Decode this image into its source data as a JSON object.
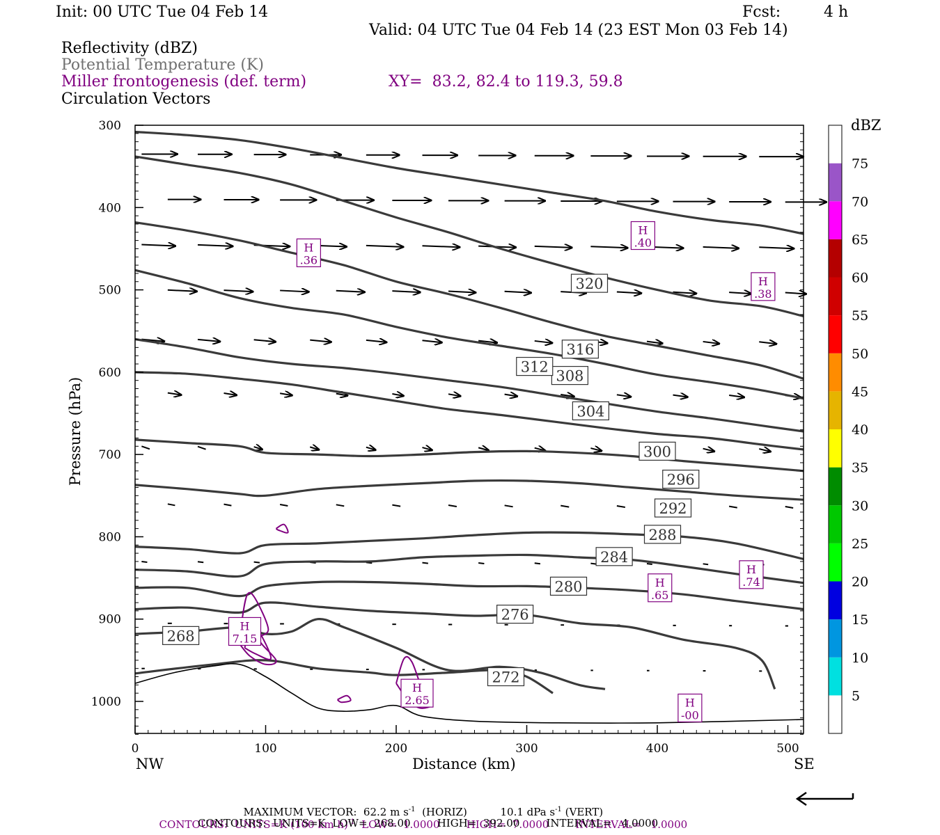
{
  "header": {
    "init": "Init: 00 UTC Tue 04 Feb 14",
    "fcst_label": "Fcst:",
    "fcst_value": "4 h",
    "valid": "Valid: 04 UTC Tue 04 Feb 14 (23 EST Mon 03 Feb 14)"
  },
  "legend_lines": {
    "reflectivity": "Reflectivity (dBZ)",
    "theta": "Potential Temperature (K)",
    "frontogenesis": "Miller frontogenesis (def. term)",
    "xy": "XY=  83.2, 82.4 to 119.3, 59.8",
    "vectors": "Circulation Vectors"
  },
  "colors": {
    "theta_contour": "#3a3a3a",
    "frontogenesis": "#800080",
    "vector": "#000000",
    "terrain": "#000000"
  },
  "chart_data": {
    "type": "cross-section",
    "xlabel": "Distance (km)",
    "ylabel": "Pressure (hPa)",
    "x_range": [
      0,
      512
    ],
    "y_range": [
      300,
      1040
    ],
    "x_ticks": [
      0,
      100,
      200,
      300,
      400,
      500
    ],
    "y_ticks": [
      300,
      400,
      500,
      600,
      700,
      800,
      900,
      1000
    ],
    "x_end_labels": {
      "left": "NW",
      "right": "SE"
    },
    "theta_contours": [
      {
        "label": "268",
        "label_at": [
          35,
          920
        ],
        "points": [
          [
            0,
            918
          ],
          [
            40,
            915
          ],
          [
            80,
            910
          ],
          [
            100,
            918
          ],
          [
            120,
            915
          ],
          [
            140,
            900
          ],
          [
            160,
            910
          ],
          [
            200,
            935
          ],
          [
            240,
            962
          ],
          [
            280,
            958
          ],
          [
            310,
            965
          ],
          [
            340,
            980
          ],
          [
            360,
            985
          ]
        ]
      },
      {
        "label": "272",
        "label_at": [
          284,
          970
        ],
        "points": [
          [
            0,
            966
          ],
          [
            60,
            955
          ],
          [
            100,
            950
          ],
          [
            140,
            960
          ],
          [
            180,
            965
          ],
          [
            200,
            968
          ],
          [
            240,
            965
          ],
          [
            280,
            962
          ],
          [
            300,
            970
          ],
          [
            320,
            990
          ]
        ]
      },
      {
        "label": "276",
        "label_at": [
          291,
          894
        ],
        "points": [
          [
            0,
            888
          ],
          [
            40,
            886
          ],
          [
            80,
            892
          ],
          [
            100,
            880
          ],
          [
            140,
            885
          ],
          [
            180,
            890
          ],
          [
            220,
            893
          ],
          [
            260,
            896
          ],
          [
            300,
            895
          ],
          [
            340,
            905
          ],
          [
            380,
            910
          ],
          [
            420,
            925
          ],
          [
            460,
            935
          ],
          [
            480,
            950
          ],
          [
            490,
            985
          ]
        ]
      },
      {
        "label": "280",
        "label_at": [
          332,
          860
        ],
        "points": [
          [
            0,
            862
          ],
          [
            40,
            862
          ],
          [
            80,
            872
          ],
          [
            100,
            860
          ],
          [
            140,
            855
          ],
          [
            180,
            855
          ],
          [
            220,
            857
          ],
          [
            260,
            860
          ],
          [
            300,
            860
          ],
          [
            340,
            862
          ],
          [
            380,
            865
          ],
          [
            420,
            870
          ],
          [
            460,
            878
          ],
          [
            512,
            888
          ]
        ]
      },
      {
        "label": "284",
        "label_at": [
          367,
          824
        ],
        "points": [
          [
            0,
            840
          ],
          [
            40,
            842
          ],
          [
            80,
            848
          ],
          [
            100,
            833
          ],
          [
            140,
            830
          ],
          [
            180,
            830
          ],
          [
            220,
            825
          ],
          [
            260,
            823
          ],
          [
            300,
            822
          ],
          [
            340,
            825
          ],
          [
            380,
            828
          ],
          [
            420,
            836
          ],
          [
            460,
            845
          ],
          [
            512,
            856
          ]
        ]
      },
      {
        "label": "288",
        "label_at": [
          404,
          797
        ],
        "points": [
          [
            0,
            812
          ],
          [
            40,
            815
          ],
          [
            80,
            820
          ],
          [
            100,
            810
          ],
          [
            140,
            808
          ],
          [
            180,
            805
          ],
          [
            220,
            802
          ],
          [
            260,
            798
          ],
          [
            300,
            795
          ],
          [
            340,
            795
          ],
          [
            380,
            797
          ],
          [
            420,
            800
          ],
          [
            460,
            808
          ],
          [
            512,
            827
          ]
        ]
      },
      {
        "label": "292",
        "label_at": [
          412,
          765
        ],
        "points": [
          [
            0,
            737
          ],
          [
            40,
            742
          ],
          [
            80,
            748
          ],
          [
            100,
            750
          ],
          [
            140,
            742
          ],
          [
            180,
            738
          ],
          [
            220,
            735
          ],
          [
            260,
            732
          ],
          [
            300,
            732
          ],
          [
            340,
            735
          ],
          [
            380,
            740
          ],
          [
            420,
            745
          ],
          [
            460,
            750
          ],
          [
            512,
            755
          ]
        ]
      },
      {
        "label": "296",
        "label_at": [
          418,
          730
        ],
        "points": [
          [
            0,
            682
          ],
          [
            40,
            686
          ],
          [
            80,
            690
          ],
          [
            100,
            698
          ],
          [
            140,
            700
          ],
          [
            180,
            702
          ],
          [
            220,
            700
          ],
          [
            260,
            697
          ],
          [
            300,
            696
          ],
          [
            340,
            698
          ],
          [
            380,
            702
          ],
          [
            420,
            708
          ],
          [
            460,
            713
          ],
          [
            512,
            720
          ]
        ]
      },
      {
        "label": "300",
        "label_at": [
          400,
          696
        ],
        "points": [
          [
            0,
            600
          ],
          [
            40,
            602
          ],
          [
            80,
            608
          ],
          [
            120,
            615
          ],
          [
            160,
            625
          ],
          [
            200,
            635
          ],
          [
            240,
            645
          ],
          [
            280,
            652
          ],
          [
            320,
            660
          ],
          [
            360,
            668
          ],
          [
            400,
            675
          ],
          [
            440,
            680
          ],
          [
            480,
            688
          ],
          [
            512,
            694
          ]
        ]
      },
      {
        "label": "304",
        "label_at": [
          349,
          647
        ],
        "points": [
          [
            0,
            560
          ],
          [
            40,
            570
          ],
          [
            80,
            582
          ],
          [
            120,
            590
          ],
          [
            160,
            595
          ],
          [
            200,
            602
          ],
          [
            240,
            610
          ],
          [
            280,
            618
          ],
          [
            320,
            628
          ],
          [
            360,
            638
          ],
          [
            400,
            648
          ],
          [
            440,
            656
          ],
          [
            480,
            665
          ],
          [
            512,
            672
          ]
        ]
      },
      {
        "label": "308",
        "label_at": [
          333,
          604
        ],
        "points": [
          [
            0,
            476
          ],
          [
            40,
            492
          ],
          [
            80,
            510
          ],
          [
            120,
            522
          ],
          [
            160,
            530
          ],
          [
            200,
            545
          ],
          [
            240,
            558
          ],
          [
            280,
            568
          ],
          [
            320,
            578
          ],
          [
            360,
            590
          ],
          [
            400,
            603
          ],
          [
            440,
            612
          ],
          [
            480,
            622
          ],
          [
            512,
            632
          ]
        ]
      },
      {
        "label": "312",
        "label_at": [
          306,
          593
        ],
        "points": [
          [
            0,
            418
          ],
          [
            40,
            428
          ],
          [
            80,
            440
          ],
          [
            120,
            455
          ],
          [
            160,
            470
          ],
          [
            200,
            490
          ],
          [
            240,
            505
          ],
          [
            280,
            522
          ],
          [
            320,
            540
          ],
          [
            360,
            556
          ],
          [
            400,
            568
          ],
          [
            440,
            580
          ],
          [
            480,
            592
          ],
          [
            512,
            608
          ]
        ]
      },
      {
        "label": "316",
        "label_at": [
          341,
          572
        ],
        "points": [
          [
            0,
            338
          ],
          [
            40,
            348
          ],
          [
            80,
            358
          ],
          [
            120,
            372
          ],
          [
            160,
            392
          ],
          [
            200,
            412
          ],
          [
            240,
            430
          ],
          [
            280,
            450
          ],
          [
            320,
            468
          ],
          [
            360,
            485
          ],
          [
            400,
            500
          ],
          [
            440,
            513
          ],
          [
            480,
            520
          ],
          [
            512,
            532
          ]
        ]
      },
      {
        "label": "320",
        "label_at": [
          348,
          492
        ],
        "points": [
          [
            0,
            308
          ],
          [
            40,
            312
          ],
          [
            80,
            318
          ],
          [
            120,
            328
          ],
          [
            160,
            340
          ],
          [
            200,
            352
          ],
          [
            240,
            362
          ],
          [
            280,
            372
          ],
          [
            320,
            382
          ],
          [
            360,
            392
          ],
          [
            400,
            405
          ],
          [
            440,
            415
          ],
          [
            480,
            422
          ],
          [
            512,
            432
          ]
        ]
      }
    ],
    "frontogenesis_maxima": [
      {
        "label": "H",
        "value": ".36",
        "x": 133,
        "y": 455
      },
      {
        "label": "H",
        "value": ".40",
        "x": 389,
        "y": 434
      },
      {
        "label": "H",
        "value": ".38",
        "x": 481,
        "y": 496
      },
      {
        "label": "H",
        "value": "7.15",
        "x": 84,
        "y": 915
      },
      {
        "label": "H",
        "value": "2.65",
        "x": 216,
        "y": 990
      },
      {
        "label": "H",
        "value": ".65",
        "x": 402,
        "y": 862
      },
      {
        "label": "H",
        "value": ".74",
        "x": 472,
        "y": 846
      },
      {
        "label": "H",
        "value": "-00",
        "x": 425,
        "y": 1008
      }
    ],
    "colorbar": {
      "title": "dBZ",
      "levels": [
        "5",
        "10",
        "15",
        "20",
        "25",
        "30",
        "35",
        "40",
        "45",
        "50",
        "55",
        "60",
        "65",
        "70",
        "75"
      ],
      "colors": [
        "#ffffff",
        "#00e0e0",
        "#0096e0",
        "#0000e0",
        "#00ff00",
        "#00c800",
        "#008c00",
        "#ffff00",
        "#e6b400",
        "#ff8c00",
        "#ff0000",
        "#d00000",
        "#b40000",
        "#ff00ff",
        "#9a55c8",
        "#ffffff"
      ]
    }
  },
  "footer": {
    "max_vector": "MAXIMUM VECTOR:  62.2 m s",
    "max_vector_horiz": "(HORIZ)",
    "max_vector_vert": "10.1 dPa s",
    "max_vector_vert_tail": "(VERT)",
    "exp_minus1": "-1",
    "contours_purple": "CONTOURS:  UNITS=K (100 km h)",
    "contours_purple_tail": "LOW=  1.0000        HIGH=  7.0000        INTERVAL=   1.0000",
    "contours_black": "CONTOURS:  UNITS=K  LOW=  268.00        HIGH=  392.00        INTERVAL=   4.0000"
  }
}
